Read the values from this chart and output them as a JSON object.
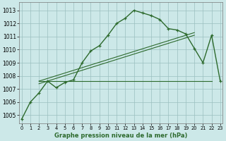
{
  "hours": [
    0,
    1,
    2,
    3,
    4,
    5,
    6,
    7,
    8,
    9,
    10,
    11,
    12,
    13,
    14,
    15,
    16,
    17,
    18,
    19,
    20,
    21,
    22,
    23
  ],
  "pressure_main": [
    1004.7,
    1006.0,
    1006.7,
    1007.6,
    1007.1,
    1007.5,
    1007.7,
    1009.0,
    1009.9,
    1010.3,
    1011.1,
    1012.0,
    1012.4,
    1013.0,
    1012.8,
    1012.6,
    1012.3,
    1011.6,
    1011.5,
    1011.2,
    1010.1,
    1009.0,
    1011.1,
    1007.6
  ],
  "ref_line1_x": [
    2,
    22
  ],
  "ref_line1_y": [
    1007.6,
    1007.6
  ],
  "ref_line2_x": [
    2,
    20
  ],
  "ref_line2_y": [
    1007.4,
    1011.1
  ],
  "ref_line3_x": [
    2,
    20
  ],
  "ref_line3_y": [
    1007.6,
    1011.3
  ],
  "background_color": "#cce8e8",
  "grid_color": "#9bbfbf",
  "line_color": "#2d6a2d",
  "xlabel_label": "Graphe pression niveau de la mer (hPa)",
  "ylim": [
    1004.4,
    1013.6
  ],
  "xlim": [
    -0.3,
    23.3
  ],
  "yticks": [
    1005,
    1006,
    1007,
    1008,
    1009,
    1010,
    1011,
    1012,
    1013
  ]
}
